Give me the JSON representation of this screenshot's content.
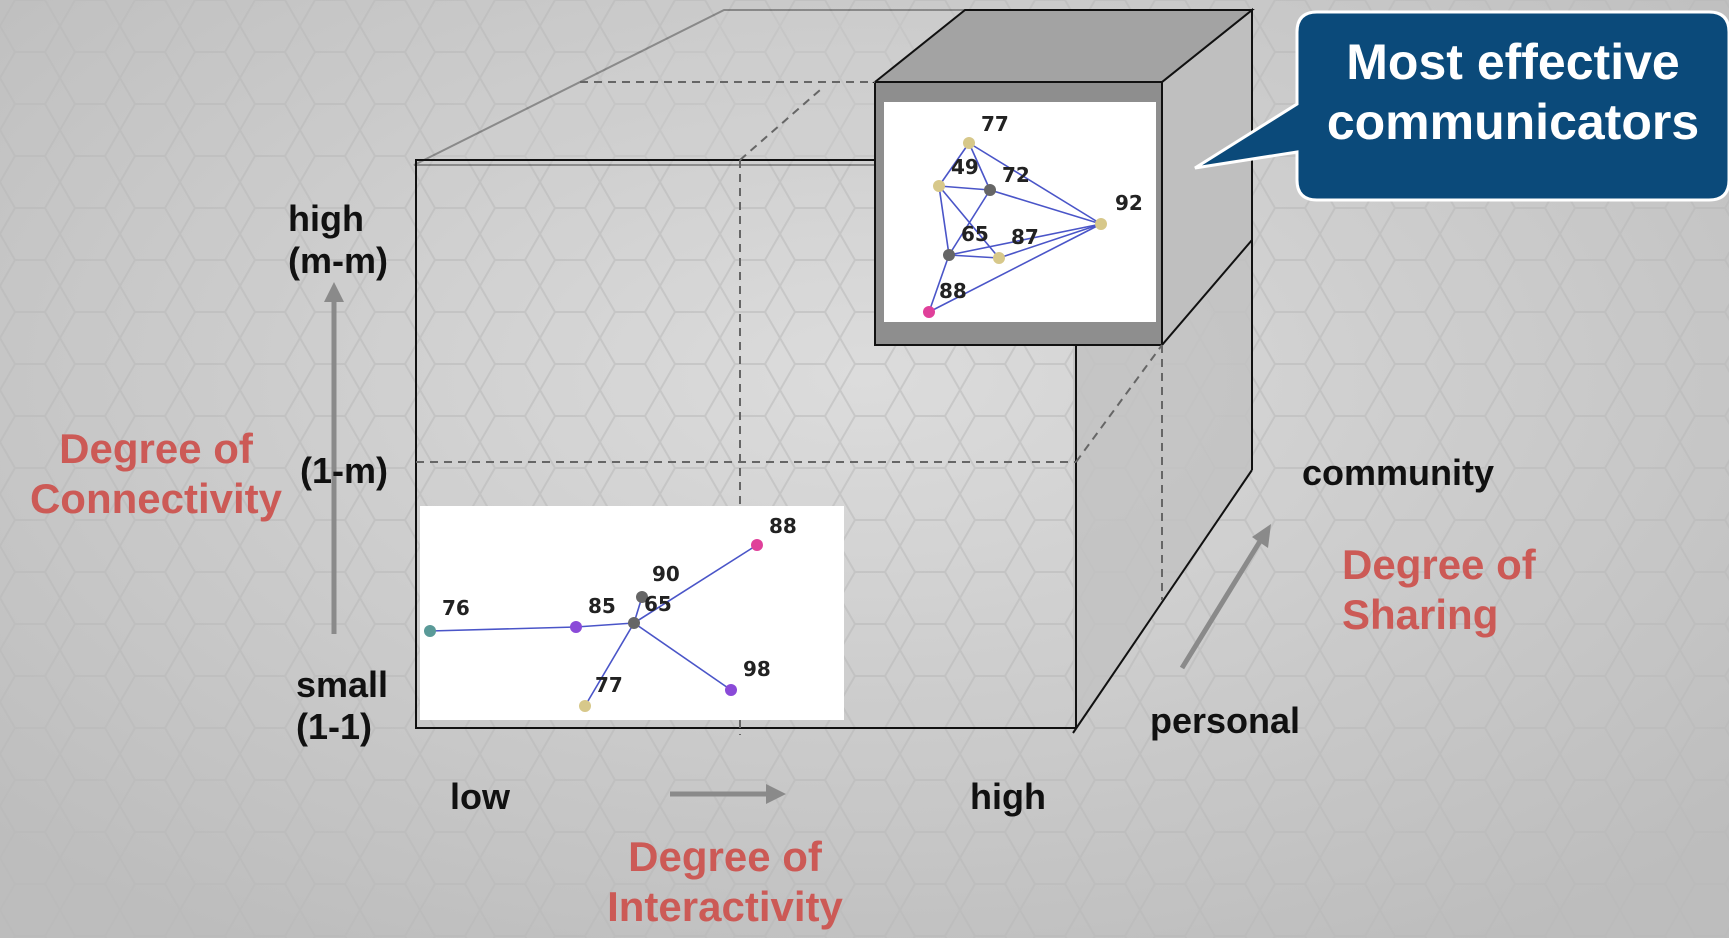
{
  "callout": {
    "text": "Most effective\ncommunicators",
    "fill": "#0b4a7a"
  },
  "axes": {
    "connectivity": {
      "title": "Degree of\nConnectivity",
      "high": "high\n(m-m)",
      "mid": "(1-m)",
      "low": "small\n(1-1)"
    },
    "interactivity": {
      "title": "Degree of\nInteractivity",
      "low": "low",
      "high": "high"
    },
    "sharing": {
      "title": "Degree of\nSharing",
      "low": "personal",
      "high": "community"
    }
  },
  "colors": {
    "axis_title": "#cc5a56",
    "edge": "#4a55c8",
    "cube_side": "#b9b9b9",
    "cube_back": "#8c8c8c"
  },
  "networks": {
    "top": {
      "nodes": [
        {
          "id": "77",
          "color": "#d7c88a"
        },
        {
          "id": "49",
          "color": "#d7c88a"
        },
        {
          "id": "72",
          "color": "#666666"
        },
        {
          "id": "92",
          "color": "#d7c88a"
        },
        {
          "id": "65",
          "color": "#666666"
        },
        {
          "id": "87",
          "color": "#d7c88a"
        },
        {
          "id": "88",
          "color": "#e0409a"
        }
      ],
      "edges": [
        [
          "77",
          "49"
        ],
        [
          "77",
          "72"
        ],
        [
          "77",
          "92"
        ],
        [
          "49",
          "72"
        ],
        [
          "49",
          "65"
        ],
        [
          "49",
          "87"
        ],
        [
          "72",
          "65"
        ],
        [
          "72",
          "92"
        ],
        [
          "65",
          "87"
        ],
        [
          "65",
          "92"
        ],
        [
          "65",
          "88"
        ],
        [
          "87",
          "92"
        ],
        [
          "88",
          "92"
        ]
      ]
    },
    "bottom": {
      "nodes": [
        {
          "id": "76",
          "color": "#5a9a98"
        },
        {
          "id": "85",
          "color": "#8a4ad8"
        },
        {
          "id": "90",
          "color": "#666666"
        },
        {
          "id": "65",
          "color": "#666666"
        },
        {
          "id": "88",
          "color": "#e0409a"
        },
        {
          "id": "98",
          "color": "#8a4ad8"
        },
        {
          "id": "77",
          "color": "#d7c88a"
        }
      ],
      "edges": [
        [
          "76",
          "85"
        ],
        [
          "85",
          "65"
        ],
        [
          "90",
          "65"
        ],
        [
          "65",
          "88"
        ],
        [
          "65",
          "98"
        ],
        [
          "65",
          "77"
        ]
      ]
    }
  }
}
